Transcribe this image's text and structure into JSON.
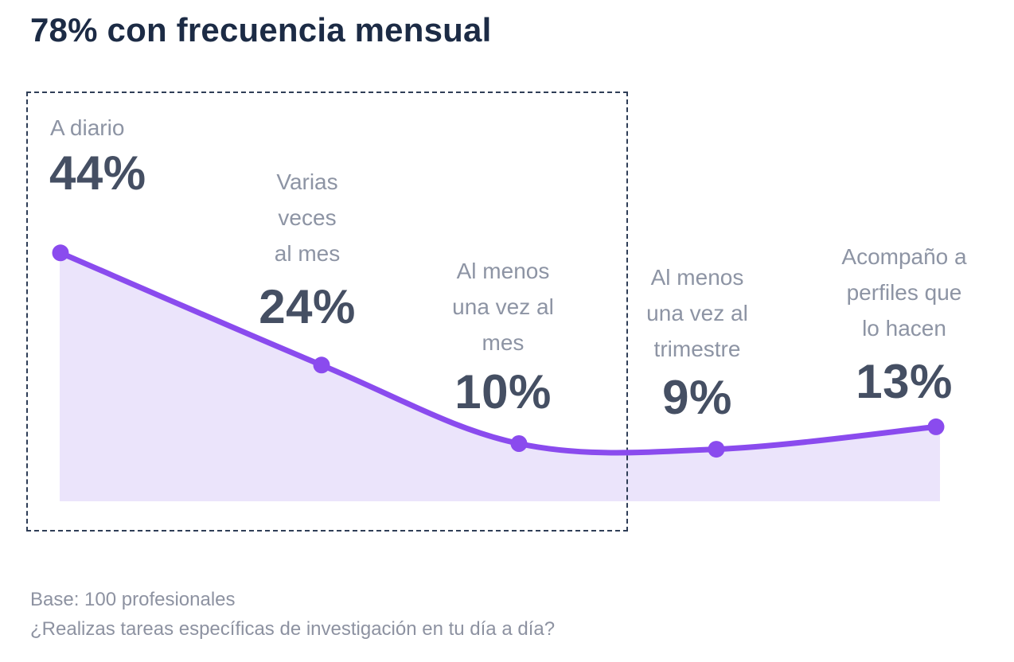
{
  "header": {
    "title": "78% con frecuencia mensual"
  },
  "chart_data": {
    "type": "area",
    "title": "78% con frecuencia mensual",
    "unit": "%",
    "categories": [
      "A diario",
      "Varias veces al mes",
      "Al menos una vez al mes",
      "Al menos una vez al trimestre",
      "Acompaño a perfiles que lo hacen"
    ],
    "values": [
      44,
      24,
      10,
      9,
      13
    ],
    "points": [
      {
        "value": 44,
        "value_label": "44%",
        "label_lines": [
          "A diario"
        ]
      },
      {
        "value": 24,
        "value_label": "24%",
        "label_lines": [
          "Varias",
          "veces",
          "al mes"
        ]
      },
      {
        "value": 10,
        "value_label": "10%",
        "label_lines": [
          "Al menos",
          "una vez al",
          "mes"
        ]
      },
      {
        "value": 9,
        "value_label": "9%",
        "label_lines": [
          "Al menos",
          "una vez al",
          "trimestre"
        ]
      },
      {
        "value": 13,
        "value_label": "13%",
        "label_lines": [
          "Acompaño a",
          "perfiles que",
          "lo hacen"
        ]
      }
    ],
    "highlight": {
      "style": "dashed-box",
      "covers_points": [
        0,
        1,
        2
      ],
      "sum_label": "78%"
    },
    "layout_hints": {
      "legend": "none",
      "grid": "off",
      "value_labels": "above points",
      "ylim": [
        0,
        50
      ]
    },
    "colors": {
      "line": "#8a4bee",
      "dot": "#8a4bee",
      "fill": "#ebe4fb",
      "title_text": "#1c2b45",
      "value_text": "#454f63",
      "label_text": "#8d94a4",
      "highlight_border": "#2f3e57"
    }
  },
  "footer": {
    "base": "Base: 100 profesionales",
    "question": "¿Realizas tareas específicas de investigación en tu día a día?"
  }
}
